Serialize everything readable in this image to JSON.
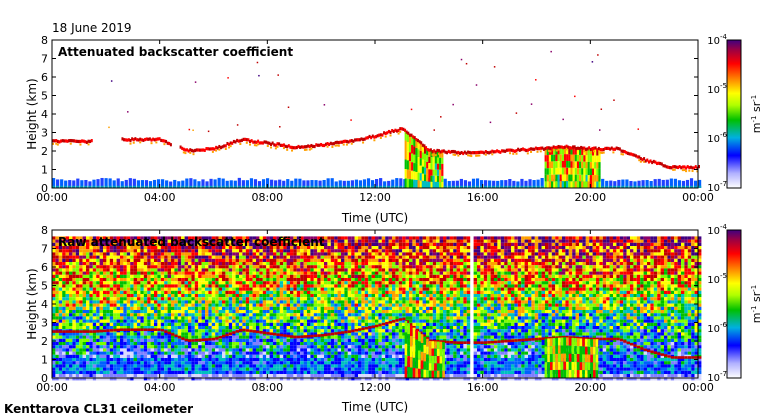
{
  "date_label": "18 June 2019",
  "footer": "Kenttarova CL31 ceilometer",
  "colors": {
    "ramp": [
      "#ffffff",
      "#d8d8ff",
      "#7f7fff",
      "#0000ff",
      "#0060ff",
      "#00c0c0",
      "#00c000",
      "#80ff00",
      "#ffff00",
      "#ffa000",
      "#ff0000",
      "#c00000",
      "#8a006a",
      "#400080"
    ]
  },
  "chart_data": [
    {
      "type": "heatmap",
      "title": "Attenuated backscatter coefficient",
      "xlabel": "Time (UTC)",
      "ylabel": "Height (km)",
      "xticks": [
        "00:00",
        "04:00",
        "08:00",
        "12:00",
        "16:00",
        "20:00",
        "00:00"
      ],
      "yticks": [
        "0",
        "1",
        "2",
        "3",
        "4",
        "5",
        "6",
        "7",
        "8"
      ],
      "ylim": [
        0,
        8
      ],
      "xlim_hours": [
        0,
        24
      ],
      "colorbar": {
        "ticks": [
          "10",
          "10",
          "10",
          "10"
        ],
        "exponents": [
          "-4",
          "-5",
          "-6",
          "-7"
        ],
        "unit_base": "m",
        "unit_base2": "sr",
        "unit_exp": "-1"
      },
      "cloud_layer_km": {
        "hours": [
          0.0,
          1.5,
          2.5,
          4.0,
          5.0,
          6.0,
          7.0,
          8.0,
          9.0,
          10.0,
          11.0,
          12.0,
          13.0,
          14.0,
          15.0,
          16.0,
          17.0,
          18.0,
          19.0,
          20.0,
          21.0,
          22.0,
          23.0,
          24.0
        ],
        "values": [
          2.5,
          2.5,
          2.6,
          2.6,
          2.0,
          2.1,
          2.6,
          2.4,
          2.2,
          2.3,
          2.5,
          2.8,
          3.2,
          2.0,
          1.9,
          1.9,
          2.0,
          2.1,
          2.2,
          2.1,
          2.1,
          1.5,
          1.1,
          1.1
        ]
      }
    },
    {
      "type": "heatmap",
      "title": "Raw attenuated backscatter coefficient",
      "xlabel": "Time (UTC)",
      "ylabel": "Height (km)",
      "xticks": [
        "00:00",
        "04:00",
        "08:00",
        "12:00",
        "16:00",
        "20:00",
        "00:00"
      ],
      "yticks": [
        "0",
        "1",
        "2",
        "3",
        "4",
        "5",
        "6",
        "7",
        "8"
      ],
      "ylim": [
        0,
        8
      ],
      "xlim_hours": [
        0,
        24
      ],
      "data_gap_hours": [
        15.5,
        15.6
      ],
      "colorbar": {
        "ticks": [
          "10",
          "10",
          "10",
          "10"
        ],
        "exponents": [
          "-4",
          "-5",
          "-6",
          "-7"
        ],
        "unit_base": "m",
        "unit_base2": "sr",
        "unit_exp": "-1"
      }
    }
  ]
}
